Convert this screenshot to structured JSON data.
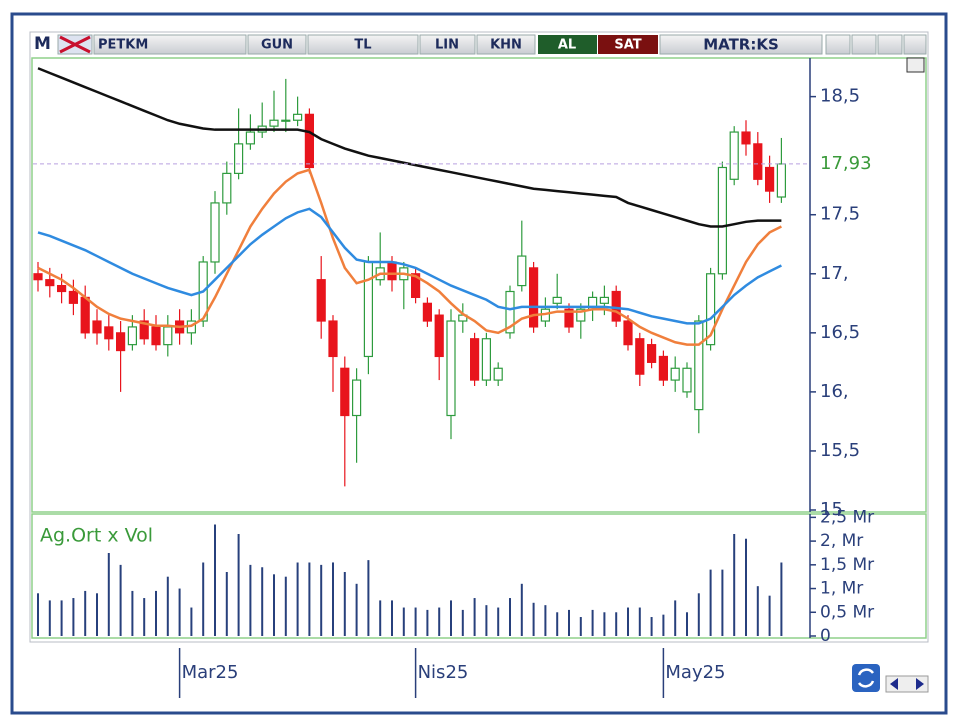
{
  "toolbar": {
    "symbol_icon": "M",
    "symbol": "PETKM",
    "period": "GUN",
    "currency": "TL",
    "scale": "LIN",
    "mode": "KHN",
    "buy": "AL",
    "sell": "SAT",
    "brand": "MATR:KS"
  },
  "chart_data": {
    "type": "candlestick",
    "categories": [
      null,
      null,
      null,
      null,
      null,
      null,
      null,
      null,
      null,
      null,
      null,
      null,
      "Mar25",
      null,
      null,
      null,
      null,
      null,
      null,
      null,
      null,
      null,
      null,
      null,
      null,
      null,
      null,
      null,
      null,
      null,
      null,
      null,
      "Nis25",
      null,
      null,
      null,
      null,
      null,
      null,
      null,
      null,
      null,
      null,
      null,
      null,
      null,
      null,
      null,
      null,
      null,
      null,
      null,
      null,
      "May25",
      null,
      null,
      null,
      null,
      null,
      null,
      null,
      null,
      null,
      null
    ],
    "open": [
      17.0,
      16.95,
      16.9,
      16.85,
      16.8,
      16.6,
      16.55,
      16.5,
      16.4,
      16.6,
      16.55,
      16.4,
      16.6,
      16.5,
      16.6,
      17.1,
      17.6,
      17.85,
      18.1,
      18.2,
      18.25,
      18.3,
      18.3,
      18.35,
      16.95,
      16.6,
      16.2,
      15.8,
      16.3,
      16.95,
      17.1,
      16.95,
      17.0,
      16.75,
      16.65,
      15.8,
      16.6,
      16.45,
      16.1,
      16.1,
      16.5,
      16.9,
      17.05,
      16.6,
      16.75,
      16.7,
      16.6,
      16.7,
      16.75,
      16.85,
      16.6,
      16.45,
      16.4,
      16.3,
      16.1,
      16.0,
      15.85,
      16.4,
      17.0,
      17.8,
      18.2,
      18.1,
      17.9,
      17.65
    ],
    "high": [
      17.1,
      17.05,
      17.0,
      16.95,
      16.9,
      16.7,
      16.65,
      16.6,
      16.65,
      16.7,
      16.65,
      16.65,
      16.7,
      16.7,
      17.15,
      17.7,
      17.95,
      18.4,
      18.35,
      18.45,
      18.55,
      18.65,
      18.5,
      18.4,
      17.15,
      16.65,
      16.3,
      16.2,
      17.15,
      17.35,
      17.15,
      17.1,
      17.05,
      16.8,
      16.7,
      16.7,
      16.75,
      16.5,
      16.5,
      16.25,
      16.9,
      17.45,
      17.1,
      16.8,
      17.0,
      16.75,
      16.75,
      16.85,
      16.9,
      16.9,
      16.65,
      16.5,
      16.45,
      16.35,
      16.3,
      16.25,
      16.65,
      17.05,
      17.95,
      18.25,
      18.3,
      18.2,
      18.0,
      18.15
    ],
    "low": [
      16.85,
      16.8,
      16.75,
      16.65,
      16.45,
      16.4,
      16.35,
      16.0,
      16.35,
      16.4,
      16.35,
      16.3,
      16.4,
      16.4,
      16.55,
      17.0,
      17.5,
      17.8,
      18.05,
      18.15,
      18.2,
      18.2,
      18.25,
      17.85,
      16.45,
      16.0,
      15.2,
      15.4,
      16.15,
      16.9,
      16.85,
      16.7,
      16.75,
      16.55,
      16.1,
      15.6,
      16.5,
      16.05,
      16.05,
      16.05,
      16.45,
      16.85,
      16.5,
      16.55,
      16.7,
      16.5,
      16.45,
      16.6,
      16.65,
      16.55,
      16.35,
      16.05,
      16.2,
      16.05,
      16.0,
      15.95,
      15.65,
      16.35,
      16.95,
      17.75,
      18.0,
      17.75,
      17.6,
      17.6
    ],
    "close": [
      16.95,
      16.9,
      16.85,
      16.75,
      16.5,
      16.5,
      16.45,
      16.35,
      16.55,
      16.45,
      16.4,
      16.55,
      16.5,
      16.6,
      17.1,
      17.6,
      17.85,
      18.1,
      18.2,
      18.25,
      18.3,
      18.3,
      18.35,
      17.9,
      16.6,
      16.3,
      15.8,
      16.1,
      17.1,
      17.05,
      16.95,
      17.05,
      16.8,
      16.6,
      16.3,
      16.6,
      16.65,
      16.1,
      16.45,
      16.2,
      16.85,
      17.15,
      16.55,
      16.7,
      16.8,
      16.55,
      16.7,
      16.8,
      16.8,
      16.6,
      16.4,
      16.15,
      16.25,
      16.1,
      16.2,
      16.2,
      16.6,
      17.0,
      17.9,
      18.2,
      18.1,
      17.8,
      17.7,
      17.93
    ],
    "up_color": "#2e9b3e",
    "down_color": "#e8141c",
    "moving_averages": [
      {
        "color": "#111111",
        "values": [
          18.74,
          18.7,
          18.66,
          18.62,
          18.58,
          18.54,
          18.5,
          18.46,
          18.42,
          18.38,
          18.34,
          18.3,
          18.27,
          18.25,
          18.23,
          18.22,
          18.22,
          18.22,
          18.22,
          18.22,
          18.22,
          18.22,
          18.22,
          18.2,
          18.14,
          18.1,
          18.06,
          18.03,
          18.0,
          17.98,
          17.96,
          17.94,
          17.92,
          17.9,
          17.88,
          17.86,
          17.84,
          17.82,
          17.8,
          17.78,
          17.76,
          17.74,
          17.72,
          17.71,
          17.7,
          17.69,
          17.68,
          17.67,
          17.66,
          17.65,
          17.6,
          17.57,
          17.54,
          17.51,
          17.48,
          17.45,
          17.42,
          17.4,
          17.4,
          17.42,
          17.44,
          17.45,
          17.45,
          17.45
        ]
      },
      {
        "color": "#f07f3c",
        "values": [
          17.05,
          17.0,
          16.95,
          16.88,
          16.8,
          16.72,
          16.66,
          16.62,
          16.6,
          16.58,
          16.56,
          16.56,
          16.55,
          16.56,
          16.62,
          16.8,
          17.0,
          17.2,
          17.4,
          17.55,
          17.68,
          17.78,
          17.85,
          17.88,
          17.6,
          17.3,
          17.05,
          16.92,
          16.95,
          17.0,
          17.0,
          17.0,
          16.98,
          16.92,
          16.85,
          16.75,
          16.66,
          16.6,
          16.52,
          16.5,
          16.55,
          16.62,
          16.65,
          16.66,
          16.68,
          16.68,
          16.68,
          16.7,
          16.7,
          16.68,
          16.62,
          16.55,
          16.5,
          16.46,
          16.42,
          16.4,
          16.4,
          16.48,
          16.7,
          16.9,
          17.1,
          17.25,
          17.35,
          17.4
        ]
      },
      {
        "color": "#2f8be0",
        "values": [
          17.35,
          17.32,
          17.28,
          17.24,
          17.2,
          17.15,
          17.1,
          17.05,
          17.0,
          16.96,
          16.92,
          16.88,
          16.85,
          16.82,
          16.85,
          16.95,
          17.05,
          17.15,
          17.25,
          17.33,
          17.4,
          17.47,
          17.52,
          17.55,
          17.48,
          17.35,
          17.22,
          17.12,
          17.1,
          17.1,
          17.1,
          17.08,
          17.05,
          17.0,
          16.95,
          16.9,
          16.86,
          16.82,
          16.78,
          16.72,
          16.7,
          16.72,
          16.72,
          16.72,
          16.72,
          16.72,
          16.72,
          16.72,
          16.72,
          16.71,
          16.7,
          16.67,
          16.64,
          16.62,
          16.6,
          16.58,
          16.58,
          16.62,
          16.72,
          16.82,
          16.9,
          16.97,
          17.02,
          17.07
        ]
      }
    ],
    "last_price": {
      "value": 17.93,
      "label": "17,93"
    },
    "ylim": [
      15,
      18.81
    ],
    "yticks": [
      {
        "value": 15,
        "label": "15"
      },
      {
        "value": 15.5,
        "label": "15,5"
      },
      {
        "value": 16,
        "label": "16,"
      },
      {
        "value": 16.5,
        "label": "16,5"
      },
      {
        "value": 17,
        "label": "17,"
      },
      {
        "value": 17.5,
        "label": "17,5"
      },
      {
        "value": 18.5,
        "label": "18,5"
      }
    ],
    "volume": {
      "title": "Ag.Ort x Vol",
      "color": "#27407c",
      "values": [
        0.9,
        0.75,
        0.75,
        0.8,
        0.95,
        0.9,
        1.75,
        1.5,
        0.95,
        0.8,
        0.95,
        1.25,
        1.0,
        0.6,
        1.55,
        2.35,
        1.35,
        2.15,
        1.5,
        1.45,
        1.3,
        1.25,
        1.55,
        1.55,
        1.5,
        1.55,
        1.35,
        1.1,
        1.6,
        0.75,
        0.75,
        0.6,
        0.6,
        0.55,
        0.6,
        0.75,
        0.55,
        0.8,
        0.65,
        0.6,
        0.8,
        1.1,
        0.7,
        0.65,
        0.5,
        0.55,
        0.4,
        0.55,
        0.5,
        0.5,
        0.6,
        0.6,
        0.4,
        0.45,
        0.75,
        0.5,
        0.9,
        1.4,
        1.4,
        2.15,
        2.05,
        1.05,
        0.85,
        1.55
      ],
      "ylim": [
        0,
        2.55
      ],
      "yticks": [
        0,
        {
          "value": 0.5,
          "label": "0,5 Mr"
        },
        {
          "value": 1,
          "label": "1, Mr"
        },
        {
          "value": 1.5,
          "label": "1,5 Mr"
        },
        {
          "value": 2,
          "label": "2, Mr"
        },
        {
          "value": 2.5,
          "label": "2,5 Mr"
        }
      ]
    }
  }
}
